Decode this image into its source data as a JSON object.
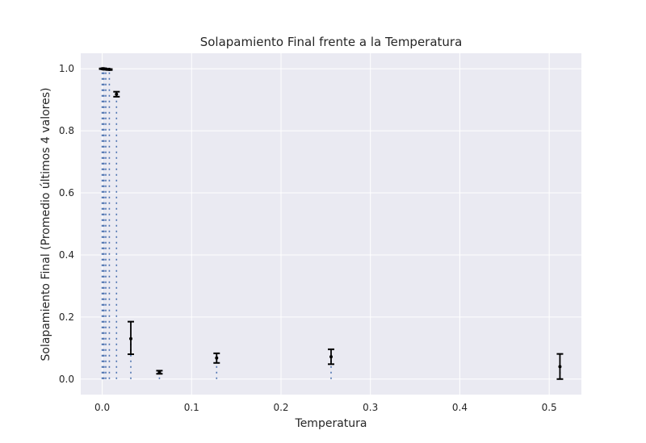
{
  "chart_data": {
    "type": "scatter",
    "title": "Solapamiento Final frente a la Temperatura",
    "xlabel": "Temperatura",
    "ylabel": "Solapamiento Final (Promedio últimos 4 valores)",
    "xlim": [
      -0.024,
      0.536
    ],
    "ylim": [
      -0.05,
      1.05
    ],
    "xticks": [
      0.0,
      0.1,
      0.2,
      0.3,
      0.4,
      0.5
    ],
    "xtick_labels": [
      "0.0",
      "0.1",
      "0.2",
      "0.3",
      "0.4",
      "0.5"
    ],
    "yticks": [
      0.0,
      0.2,
      0.4,
      0.6,
      0.8,
      1.0
    ],
    "ytick_labels": [
      "0.0",
      "0.2",
      "0.4",
      "0.6",
      "0.8",
      "1.0"
    ],
    "grid": true,
    "points": [
      {
        "x": 0.0,
        "y": 1.0,
        "yerr_low": 0.999,
        "yerr_high": 1.001
      },
      {
        "x": 0.001,
        "y": 1.0,
        "yerr_low": 0.999,
        "yerr_high": 1.001
      },
      {
        "x": 0.002,
        "y": 1.0,
        "yerr_low": 0.999,
        "yerr_high": 1.001
      },
      {
        "x": 0.004,
        "y": 0.999,
        "yerr_low": 0.997,
        "yerr_high": 1.0
      },
      {
        "x": 0.008,
        "y": 0.998,
        "yerr_low": 0.996,
        "yerr_high": 0.999
      },
      {
        "x": 0.016,
        "y": 0.918,
        "yerr_low": 0.91,
        "yerr_high": 0.926
      },
      {
        "x": 0.032,
        "y": 0.13,
        "yerr_low": 0.08,
        "yerr_high": 0.185
      },
      {
        "x": 0.064,
        "y": 0.022,
        "yerr_low": 0.017,
        "yerr_high": 0.027
      },
      {
        "x": 0.128,
        "y": 0.068,
        "yerr_low": 0.052,
        "yerr_high": 0.083
      },
      {
        "x": 0.256,
        "y": 0.072,
        "yerr_low": 0.048,
        "yerr_high": 0.096
      },
      {
        "x": 0.512,
        "y": 0.04,
        "yerr_low": 0.0,
        "yerr_high": 0.081
      }
    ],
    "colors": {
      "background": "#eaeaf2",
      "grid": "#ffffff",
      "stem": "#4c72b0",
      "errorbar": "#000000",
      "text": "#262626"
    }
  }
}
